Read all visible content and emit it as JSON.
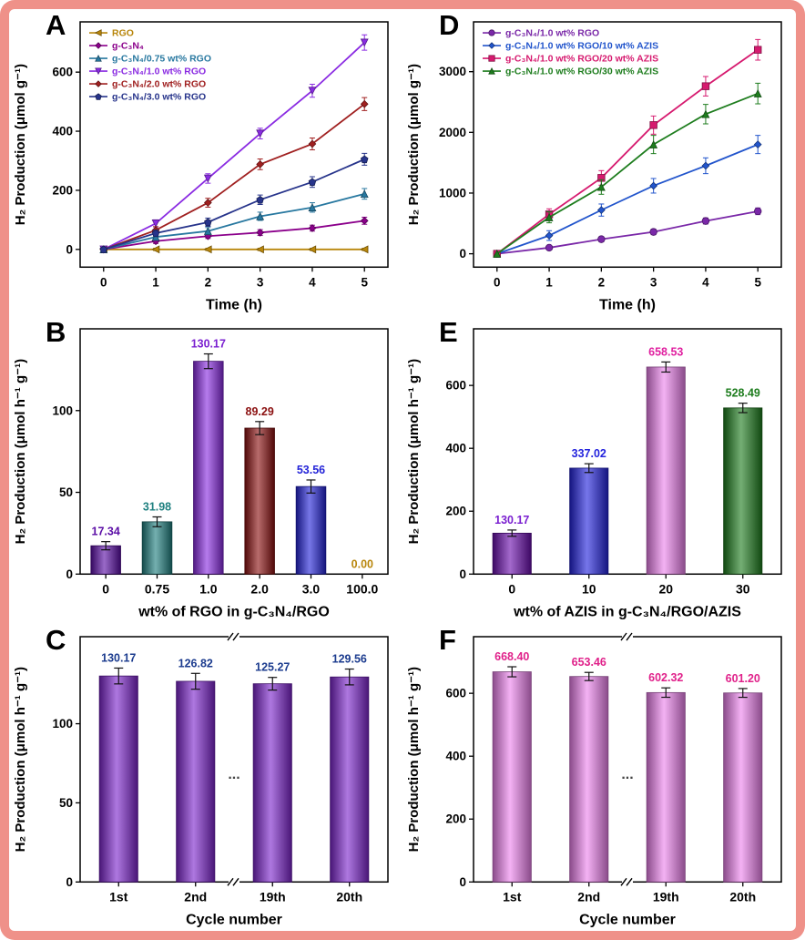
{
  "frame": {
    "border_color": "#ef9189",
    "background": "#ffffff"
  },
  "chart_data": [
    {
      "panel": "A",
      "type": "line",
      "xlabel": "Time (h)",
      "ylabel": "H₂ Production (μmol g⁻¹)",
      "x": [
        0,
        1,
        2,
        3,
        4,
        5
      ],
      "xticks": [
        0,
        1,
        2,
        3,
        4,
        5
      ],
      "xlim": [
        -0.45,
        5.45
      ],
      "ylim": [
        -60,
        770
      ],
      "yticks": [
        0,
        200,
        400,
        600
      ],
      "legend_position": "top-left",
      "series": [
        {
          "name": "RGO",
          "color": "#b8860b",
          "marker": "triangle-left",
          "values": [
            0,
            0,
            0,
            0,
            0,
            0
          ],
          "errors": [
            0,
            4,
            4,
            4,
            4,
            4
          ]
        },
        {
          "name": "g-C₃N₄",
          "color": "#8b008b",
          "marker": "diamond",
          "values": [
            0,
            28,
            45,
            57,
            72,
            97
          ],
          "errors": [
            0,
            8,
            8,
            10,
            10,
            12
          ]
        },
        {
          "name": "g-C₃N₄/0.75 wt% RGO",
          "color": "#2878a0",
          "marker": "triangle",
          "values": [
            0,
            42,
            62,
            112,
            142,
            188
          ],
          "errors": [
            0,
            10,
            12,
            14,
            16,
            18
          ]
        },
        {
          "name": "g-C₃N₄/1.0 wt% RGO",
          "color": "#8a2be2",
          "marker": "triangle-down",
          "values": [
            0,
            88,
            240,
            392,
            537,
            700
          ],
          "errors": [
            0,
            12,
            16,
            18,
            22,
            26
          ]
        },
        {
          "name": "g-C₃N₄/2.0 wt% RGO",
          "color": "#a02020",
          "marker": "diamond",
          "values": [
            0,
            65,
            158,
            288,
            357,
            492
          ],
          "errors": [
            0,
            12,
            15,
            18,
            20,
            22
          ]
        },
        {
          "name": "g-C₃N₄/3.0 wt% RGO",
          "color": "#27348b",
          "marker": "pentagon",
          "values": [
            0,
            55,
            92,
            168,
            228,
            305
          ],
          "errors": [
            0,
            10,
            14,
            16,
            18,
            20
          ]
        }
      ]
    },
    {
      "panel": "D",
      "type": "line",
      "xlabel": "Time (h)",
      "ylabel": "H₂ Production (μmol g⁻¹)",
      "x": [
        0,
        1,
        2,
        3,
        4,
        5
      ],
      "xticks": [
        0,
        1,
        2,
        3,
        4,
        5
      ],
      "xlim": [
        -0.45,
        5.45
      ],
      "ylim": [
        -220,
        3820
      ],
      "yticks": [
        0,
        1000,
        2000,
        3000
      ],
      "legend_position": "top-left",
      "series": [
        {
          "name": "g-C₃N₄/1.0 wt% RGO",
          "color": "#7a28a8",
          "marker": "circle",
          "values": [
            0,
            100,
            240,
            360,
            540,
            700
          ],
          "errors": [
            0,
            35,
            40,
            45,
            50,
            55
          ]
        },
        {
          "name": "g-C₃N₄/1.0 wt% RGO/10 wt% AZIS",
          "color": "#2255cc",
          "marker": "diamond",
          "values": [
            0,
            300,
            720,
            1120,
            1450,
            1800
          ],
          "errors": [
            0,
            80,
            100,
            120,
            130,
            150
          ]
        },
        {
          "name": "g-C₃N₄/1.0 wt% RGO/20 wt% AZIS",
          "color": "#d61a6f",
          "marker": "square",
          "values": [
            0,
            650,
            1250,
            2120,
            2760,
            3360
          ],
          "errors": [
            0,
            90,
            120,
            150,
            160,
            170
          ]
        },
        {
          "name": "g-C₃N₄/1.0 wt% RGO/30 wt% AZIS",
          "color": "#1e7d1e",
          "marker": "triangle",
          "values": [
            0,
            600,
            1100,
            1800,
            2300,
            2640
          ],
          "errors": [
            0,
            90,
            120,
            150,
            160,
            170
          ]
        }
      ]
    },
    {
      "panel": "B",
      "type": "bar",
      "xlabel": "wt% of RGO in g-C₃N₄/RGO",
      "ylabel": "H₂ Production (μmol h⁻¹ g⁻¹)",
      "categories": [
        "0",
        "0.75",
        "1.0",
        "2.0",
        "3.0",
        "100.0"
      ],
      "values": [
        17.34,
        31.98,
        130.17,
        89.29,
        53.56,
        0.0
      ],
      "value_labels": [
        "17.34",
        "31.98",
        "130.17",
        "89.29",
        "53.56",
        "0.00"
      ],
      "errors": [
        2.5,
        3,
        4.5,
        4,
        4,
        0
      ],
      "bar_colors": [
        "#5b0ea6",
        "#1f8080",
        "#8a2be2",
        "#8b1010",
        "#2424d8",
        "#b8860b"
      ],
      "label_colors": [
        "#5b0ea6",
        "#1f8080",
        "#7a1fd0",
        "#8b1010",
        "#2424d8",
        "#b8860b"
      ],
      "ylim": [
        0,
        150
      ],
      "yticks": [
        0,
        50,
        100
      ]
    },
    {
      "panel": "E",
      "type": "bar",
      "xlabel": "wt% of AZIS in g-C₃N₄/RGO/AZIS",
      "ylabel": "H₂ Production (μmol  h⁻¹ g⁻¹)",
      "categories": [
        "0",
        "10",
        "20",
        "30"
      ],
      "values": [
        130.17,
        337.02,
        658.53,
        528.49
      ],
      "value_labels": [
        "130.17",
        "337.02",
        "658.53",
        "528.49"
      ],
      "errors": [
        10,
        14,
        16,
        15
      ],
      "bar_colors": [
        "#6a0dad",
        "#2222dd",
        "#ee82ee",
        "#1e7d1e"
      ],
      "label_colors": [
        "#7a1fd0",
        "#2222dd",
        "#e020a0",
        "#1e7d1e"
      ],
      "ylim": [
        0,
        780
      ],
      "yticks": [
        0,
        200,
        400,
        600
      ]
    },
    {
      "panel": "C",
      "type": "bar",
      "xlabel": "Cycle number",
      "ylabel": "H₂ Production (μmol h⁻¹ g⁻¹)",
      "categories": [
        "1st",
        "2nd",
        "19th",
        "20th"
      ],
      "values": [
        130.17,
        126.82,
        125.27,
        129.56
      ],
      "value_labels": [
        "130.17",
        "126.82",
        "125.27",
        "129.56"
      ],
      "errors": [
        5,
        5,
        4,
        5
      ],
      "bar_colors": [
        "#7d26cd",
        "#7d26cd",
        "#7d26cd",
        "#7d26cd"
      ],
      "label_colors": [
        "#1b3b8e",
        "#1b3b8e",
        "#1b3b8e",
        "#1b3b8e"
      ],
      "ylim": [
        0,
        155
      ],
      "yticks": [
        0,
        50,
        100
      ],
      "break_after": 1,
      "ellipsis": "..."
    },
    {
      "panel": "F",
      "type": "bar",
      "xlabel": "Cycle number",
      "ylabel": "H₂ Production (μmol h⁻¹ g⁻¹)",
      "categories": [
        "1st",
        "2nd",
        "19th",
        "20th"
      ],
      "values": [
        668.4,
        653.46,
        602.32,
        601.2
      ],
      "value_labels": [
        "668.40",
        "653.46",
        "602.32",
        "601.20"
      ],
      "errors": [
        16,
        13,
        15,
        14
      ],
      "bar_colors": [
        "#ee82ee",
        "#ee82ee",
        "#ee82ee",
        "#ee82ee"
      ],
      "label_colors": [
        "#e0218a",
        "#e0218a",
        "#e0218a",
        "#e0218a"
      ],
      "ylim": [
        0,
        780
      ],
      "yticks": [
        0,
        200,
        400,
        600
      ],
      "break_after": 1,
      "ellipsis": "..."
    }
  ]
}
